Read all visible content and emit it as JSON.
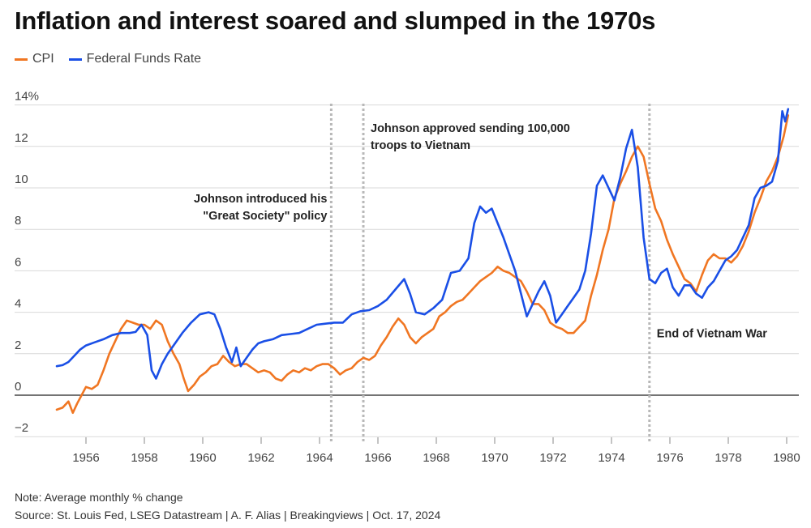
{
  "title": "Inflation and interest soared and slumped in the 1970s",
  "legend": [
    {
      "label": "CPI",
      "color": "#f07622"
    },
    {
      "label": "Federal Funds Rate",
      "color": "#1a4fe6"
    }
  ],
  "note": "Note: Average monthly % change",
  "source": "Source: St. Louis Fed, LSEG Datastream | A. F. Alias | Breakingviews | Oct. 17, 2024",
  "chart_data": {
    "type": "line",
    "title": "Inflation and interest soared and slumped in the 1970s",
    "xlabel": "",
    "ylabel": "",
    "xlim": [
      1954.5,
      1980.3
    ],
    "ylim": [
      -2.5,
      14.5
    ],
    "xticks": [
      1956,
      1958,
      1960,
      1962,
      1964,
      1966,
      1968,
      1970,
      1972,
      1974,
      1976,
      1978,
      1980
    ],
    "yticks": [
      {
        "value": 14,
        "label": "14%"
      },
      {
        "value": 12,
        "label": "12"
      },
      {
        "value": 10,
        "label": "10"
      },
      {
        "value": 8,
        "label": "8"
      },
      {
        "value": 6,
        "label": "6"
      },
      {
        "value": 4,
        "label": "4"
      },
      {
        "value": 2,
        "label": "2"
      },
      {
        "value": 0,
        "label": "0"
      },
      {
        "value": -2,
        "label": "−2"
      }
    ],
    "grid": "horizontal",
    "legend_position": "top-left",
    "series": [
      {
        "name": "CPI",
        "color": "#f07622",
        "points": [
          [
            1955.0,
            -0.7
          ],
          [
            1955.2,
            -0.6
          ],
          [
            1955.4,
            -0.3
          ],
          [
            1955.55,
            -0.85
          ],
          [
            1955.7,
            -0.4
          ],
          [
            1955.85,
            0.0
          ],
          [
            1956.0,
            0.4
          ],
          [
            1956.2,
            0.3
          ],
          [
            1956.4,
            0.5
          ],
          [
            1956.6,
            1.2
          ],
          [
            1956.8,
            2.0
          ],
          [
            1957.0,
            2.6
          ],
          [
            1957.2,
            3.2
          ],
          [
            1957.4,
            3.6
          ],
          [
            1957.6,
            3.5
          ],
          [
            1957.8,
            3.4
          ],
          [
            1958.0,
            3.4
          ],
          [
            1958.2,
            3.2
          ],
          [
            1958.4,
            3.6
          ],
          [
            1958.6,
            3.4
          ],
          [
            1958.8,
            2.6
          ],
          [
            1959.0,
            2.0
          ],
          [
            1959.2,
            1.5
          ],
          [
            1959.35,
            0.8
          ],
          [
            1959.5,
            0.2
          ],
          [
            1959.7,
            0.5
          ],
          [
            1959.9,
            0.9
          ],
          [
            1960.1,
            1.1
          ],
          [
            1960.3,
            1.4
          ],
          [
            1960.5,
            1.5
          ],
          [
            1960.7,
            1.9
          ],
          [
            1960.9,
            1.6
          ],
          [
            1961.1,
            1.4
          ],
          [
            1961.3,
            1.5
          ],
          [
            1961.5,
            1.5
          ],
          [
            1961.7,
            1.3
          ],
          [
            1961.9,
            1.1
          ],
          [
            1962.1,
            1.2
          ],
          [
            1962.3,
            1.1
          ],
          [
            1962.5,
            0.8
          ],
          [
            1962.7,
            0.7
          ],
          [
            1962.9,
            1.0
          ],
          [
            1963.1,
            1.2
          ],
          [
            1963.3,
            1.1
          ],
          [
            1963.5,
            1.3
          ],
          [
            1963.7,
            1.2
          ],
          [
            1963.9,
            1.4
          ],
          [
            1964.1,
            1.5
          ],
          [
            1964.3,
            1.5
          ],
          [
            1964.5,
            1.3
          ],
          [
            1964.7,
            1.0
          ],
          [
            1964.9,
            1.2
          ],
          [
            1965.1,
            1.3
          ],
          [
            1965.3,
            1.6
          ],
          [
            1965.5,
            1.8
          ],
          [
            1965.7,
            1.7
          ],
          [
            1965.9,
            1.9
          ],
          [
            1966.1,
            2.4
          ],
          [
            1966.3,
            2.8
          ],
          [
            1966.5,
            3.3
          ],
          [
            1966.7,
            3.7
          ],
          [
            1966.9,
            3.4
          ],
          [
            1967.1,
            2.8
          ],
          [
            1967.3,
            2.5
          ],
          [
            1967.5,
            2.8
          ],
          [
            1967.7,
            3.0
          ],
          [
            1967.9,
            3.2
          ],
          [
            1968.1,
            3.8
          ],
          [
            1968.3,
            4.0
          ],
          [
            1968.5,
            4.3
          ],
          [
            1968.7,
            4.5
          ],
          [
            1968.9,
            4.6
          ],
          [
            1969.1,
            4.9
          ],
          [
            1969.3,
            5.2
          ],
          [
            1969.5,
            5.5
          ],
          [
            1969.7,
            5.7
          ],
          [
            1969.9,
            5.9
          ],
          [
            1970.1,
            6.2
          ],
          [
            1970.3,
            6.0
          ],
          [
            1970.5,
            5.9
          ],
          [
            1970.7,
            5.7
          ],
          [
            1970.9,
            5.5
          ],
          [
            1971.1,
            5.0
          ],
          [
            1971.3,
            4.4
          ],
          [
            1971.5,
            4.4
          ],
          [
            1971.7,
            4.1
          ],
          [
            1971.9,
            3.5
          ],
          [
            1972.1,
            3.3
          ],
          [
            1972.3,
            3.2
          ],
          [
            1972.5,
            3.0
          ],
          [
            1972.7,
            3.0
          ],
          [
            1972.9,
            3.3
          ],
          [
            1973.1,
            3.6
          ],
          [
            1973.3,
            4.8
          ],
          [
            1973.5,
            5.8
          ],
          [
            1973.7,
            7.0
          ],
          [
            1973.9,
            8.0
          ],
          [
            1974.1,
            9.5
          ],
          [
            1974.3,
            10.2
          ],
          [
            1974.5,
            10.8
          ],
          [
            1974.7,
            11.5
          ],
          [
            1974.9,
            12.0
          ],
          [
            1975.1,
            11.5
          ],
          [
            1975.3,
            10.2
          ],
          [
            1975.5,
            9.0
          ],
          [
            1975.7,
            8.4
          ],
          [
            1975.9,
            7.5
          ],
          [
            1976.1,
            6.8
          ],
          [
            1976.3,
            6.2
          ],
          [
            1976.5,
            5.6
          ],
          [
            1976.7,
            5.4
          ],
          [
            1976.9,
            5.0
          ],
          [
            1977.1,
            5.8
          ],
          [
            1977.3,
            6.5
          ],
          [
            1977.5,
            6.8
          ],
          [
            1977.7,
            6.6
          ],
          [
            1977.9,
            6.6
          ],
          [
            1978.1,
            6.4
          ],
          [
            1978.3,
            6.7
          ],
          [
            1978.5,
            7.2
          ],
          [
            1978.7,
            7.9
          ],
          [
            1978.9,
            8.8
          ],
          [
            1979.1,
            9.5
          ],
          [
            1979.3,
            10.3
          ],
          [
            1979.5,
            10.8
          ],
          [
            1979.7,
            11.5
          ],
          [
            1979.9,
            12.5
          ],
          [
            1980.05,
            13.5
          ]
        ]
      },
      {
        "name": "Federal Funds Rate",
        "color": "#1a4fe6",
        "points": [
          [
            1955.0,
            1.4
          ],
          [
            1955.2,
            1.45
          ],
          [
            1955.4,
            1.6
          ],
          [
            1955.6,
            1.9
          ],
          [
            1955.8,
            2.2
          ],
          [
            1956.0,
            2.4
          ],
          [
            1956.3,
            2.55
          ],
          [
            1956.6,
            2.7
          ],
          [
            1956.9,
            2.9
          ],
          [
            1957.2,
            3.0
          ],
          [
            1957.5,
            3.0
          ],
          [
            1957.7,
            3.05
          ],
          [
            1957.9,
            3.4
          ],
          [
            1958.1,
            2.9
          ],
          [
            1958.25,
            1.2
          ],
          [
            1958.4,
            0.8
          ],
          [
            1958.6,
            1.5
          ],
          [
            1958.8,
            2.0
          ],
          [
            1959.0,
            2.4
          ],
          [
            1959.3,
            3.0
          ],
          [
            1959.6,
            3.5
          ],
          [
            1959.9,
            3.9
          ],
          [
            1960.2,
            4.0
          ],
          [
            1960.4,
            3.9
          ],
          [
            1960.6,
            3.2
          ],
          [
            1960.8,
            2.3
          ],
          [
            1961.0,
            1.6
          ],
          [
            1961.15,
            2.3
          ],
          [
            1961.3,
            1.4
          ],
          [
            1961.5,
            1.8
          ],
          [
            1961.7,
            2.2
          ],
          [
            1961.9,
            2.5
          ],
          [
            1962.1,
            2.6
          ],
          [
            1962.4,
            2.7
          ],
          [
            1962.7,
            2.9
          ],
          [
            1963.0,
            2.95
          ],
          [
            1963.3,
            3.0
          ],
          [
            1963.6,
            3.2
          ],
          [
            1963.9,
            3.4
          ],
          [
            1964.2,
            3.45
          ],
          [
            1964.5,
            3.5
          ],
          [
            1964.8,
            3.5
          ],
          [
            1965.1,
            3.9
          ],
          [
            1965.4,
            4.05
          ],
          [
            1965.7,
            4.1
          ],
          [
            1966.0,
            4.3
          ],
          [
            1966.3,
            4.6
          ],
          [
            1966.6,
            5.1
          ],
          [
            1966.9,
            5.6
          ],
          [
            1967.1,
            4.9
          ],
          [
            1967.3,
            4.0
          ],
          [
            1967.6,
            3.9
          ],
          [
            1967.9,
            4.2
          ],
          [
            1968.2,
            4.6
          ],
          [
            1968.5,
            5.9
          ],
          [
            1968.8,
            6.0
          ],
          [
            1969.1,
            6.6
          ],
          [
            1969.3,
            8.3
          ],
          [
            1969.5,
            9.1
          ],
          [
            1969.7,
            8.8
          ],
          [
            1969.9,
            9.0
          ],
          [
            1970.1,
            8.3
          ],
          [
            1970.3,
            7.6
          ],
          [
            1970.5,
            6.8
          ],
          [
            1970.7,
            6.0
          ],
          [
            1970.9,
            4.9
          ],
          [
            1971.1,
            3.8
          ],
          [
            1971.3,
            4.4
          ],
          [
            1971.5,
            5.0
          ],
          [
            1971.7,
            5.5
          ],
          [
            1971.9,
            4.8
          ],
          [
            1972.1,
            3.5
          ],
          [
            1972.3,
            3.9
          ],
          [
            1972.5,
            4.3
          ],
          [
            1972.7,
            4.7
          ],
          [
            1972.9,
            5.1
          ],
          [
            1973.1,
            6.0
          ],
          [
            1973.3,
            7.8
          ],
          [
            1973.5,
            10.1
          ],
          [
            1973.7,
            10.6
          ],
          [
            1973.9,
            10.0
          ],
          [
            1974.1,
            9.4
          ],
          [
            1974.3,
            10.5
          ],
          [
            1974.5,
            11.9
          ],
          [
            1974.7,
            12.8
          ],
          [
            1974.9,
            11.0
          ],
          [
            1975.1,
            7.6
          ],
          [
            1975.3,
            5.6
          ],
          [
            1975.5,
            5.4
          ],
          [
            1975.7,
            5.9
          ],
          [
            1975.9,
            6.1
          ],
          [
            1976.1,
            5.2
          ],
          [
            1976.3,
            4.8
          ],
          [
            1976.5,
            5.3
          ],
          [
            1976.7,
            5.3
          ],
          [
            1976.9,
            4.9
          ],
          [
            1977.1,
            4.7
          ],
          [
            1977.3,
            5.2
          ],
          [
            1977.5,
            5.5
          ],
          [
            1977.7,
            6.0
          ],
          [
            1977.9,
            6.5
          ],
          [
            1978.1,
            6.7
          ],
          [
            1978.3,
            7.0
          ],
          [
            1978.5,
            7.6
          ],
          [
            1978.7,
            8.2
          ],
          [
            1978.9,
            9.5
          ],
          [
            1979.1,
            10.0
          ],
          [
            1979.3,
            10.1
          ],
          [
            1979.5,
            10.3
          ],
          [
            1979.7,
            11.3
          ],
          [
            1979.85,
            13.7
          ],
          [
            1979.95,
            13.2
          ],
          [
            1980.05,
            13.8
          ]
        ]
      }
    ],
    "events": [
      {
        "x": 1964.4,
        "lines": [
          "Johnson introduced his",
          "\"Great Society\" policy"
        ],
        "anchor": "end",
        "label_y": 9.3
      },
      {
        "x": 1965.5,
        "lines": [
          "Johnson approved sending 100,000",
          "troops to Vietnam"
        ],
        "anchor": "start",
        "label_y": 12.7
      },
      {
        "x": 1975.3,
        "lines": [
          "End of Vietnam War"
        ],
        "anchor": "start",
        "label_y": 2.8
      }
    ]
  }
}
